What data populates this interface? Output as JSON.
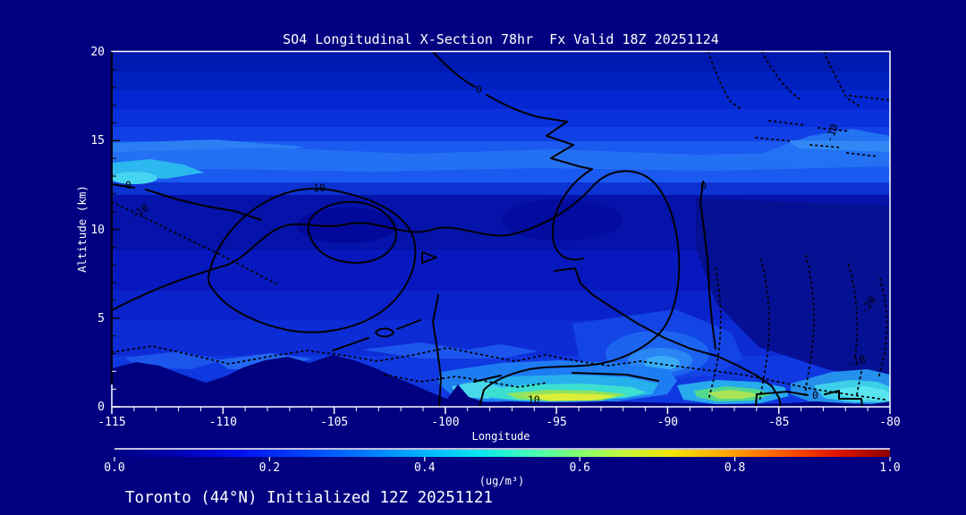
{
  "colors": {
    "background": "#000080",
    "text": "#ffffff",
    "contour_lines": "#000000",
    "frame": "#ffffff"
  },
  "chart_data": {
    "type": "heatmap",
    "variant": "filled-contour-vertical-cross-section",
    "title": "SO4 Longitudinal X-Section 78hr  Fx Valid 18Z 20251124",
    "xlabel": "Longitude",
    "ylabel": "Altitude (km)",
    "xlim": [
      -115,
      -80
    ],
    "ylim": [
      0,
      20
    ],
    "grid": false,
    "x_tick_labels": [
      "-115",
      "-110",
      "-105",
      "-100",
      "-95",
      "-90",
      "-85",
      "-80"
    ],
    "y_tick_labels": [
      "0",
      "5",
      "10",
      "15",
      "20"
    ],
    "colorbar": {
      "label": "(ug/m³)",
      "tick_labels": [
        "0.0",
        "0.2",
        "0.4",
        "0.6",
        "0.8",
        "1.0"
      ],
      "range": [
        0,
        1
      ],
      "colormap": "jet",
      "position": "bottom",
      "stops": [
        {
          "offset": "0%",
          "color": "#000085"
        },
        {
          "offset": "8%",
          "color": "#0000b0"
        },
        {
          "offset": "16%",
          "color": "#0010f0"
        },
        {
          "offset": "24%",
          "color": "#0040ff"
        },
        {
          "offset": "32%",
          "color": "#0078ff"
        },
        {
          "offset": "40%",
          "color": "#00b4ff"
        },
        {
          "offset": "47%",
          "color": "#0ae6f0"
        },
        {
          "offset": "54%",
          "color": "#45ffb4"
        },
        {
          "offset": "60%",
          "color": "#83ff70"
        },
        {
          "offset": "66%",
          "color": "#c8f637"
        },
        {
          "offset": "72%",
          "color": "#f5e300"
        },
        {
          "offset": "79%",
          "color": "#ffa400"
        },
        {
          "offset": "86%",
          "color": "#ff5a00"
        },
        {
          "offset": "93%",
          "color": "#e31500"
        },
        {
          "offset": "100%",
          "color": "#8d0000"
        }
      ]
    },
    "overlay_contours": {
      "labeled_values": [
        -20,
        -10,
        0,
        10
      ],
      "positive_style": "solid",
      "negative_style": "dotted"
    },
    "contour_label_texts": [
      "0",
      "-10",
      "10",
      "0",
      "0",
      "-10",
      "-20",
      "-10",
      "10",
      "0"
    ],
    "field_estimate": {
      "units": "ug/m3",
      "longitudes": [
        -115,
        -110,
        -105,
        -100,
        -95,
        -90,
        -85,
        -80
      ],
      "altitudes_km": [
        0,
        2,
        5,
        8,
        10,
        13,
        16,
        20
      ],
      "values": [
        [
          0.05,
          0.05,
          0.08,
          0.3,
          0.62,
          0.3,
          0.5,
          0.35
        ],
        [
          0.18,
          0.22,
          0.2,
          0.25,
          0.28,
          0.22,
          0.25,
          0.22
        ],
        [
          0.15,
          0.16,
          0.15,
          0.15,
          0.18,
          0.25,
          0.15,
          0.12
        ],
        [
          0.12,
          0.12,
          0.12,
          0.12,
          0.14,
          0.12,
          0.1,
          0.1
        ],
        [
          0.1,
          0.08,
          0.06,
          0.08,
          0.08,
          0.08,
          0.06,
          0.06
        ],
        [
          0.28,
          0.3,
          0.28,
          0.26,
          0.28,
          0.26,
          0.25,
          0.26
        ],
        [
          0.2,
          0.2,
          0.2,
          0.2,
          0.2,
          0.18,
          0.18,
          0.18
        ],
        [
          0.12,
          0.12,
          0.12,
          0.12,
          0.12,
          0.12,
          0.12,
          0.12
        ]
      ]
    },
    "surface_maxima": [
      {
        "longitude_approx": -94.5,
        "value_approx": 0.62,
        "note": "yellow-green surface plume"
      },
      {
        "longitude_approx": -86.5,
        "value_approx": 0.5,
        "note": "green surface plume"
      },
      {
        "longitude_approx": -82.0,
        "value_approx": 0.4,
        "note": "cyan surface layer"
      }
    ],
    "annotation": "Toronto (44°N) Initialized 12Z 20251121"
  },
  "footer": {
    "annotation": "Toronto (44°N) Initialized 12Z 20251121"
  }
}
